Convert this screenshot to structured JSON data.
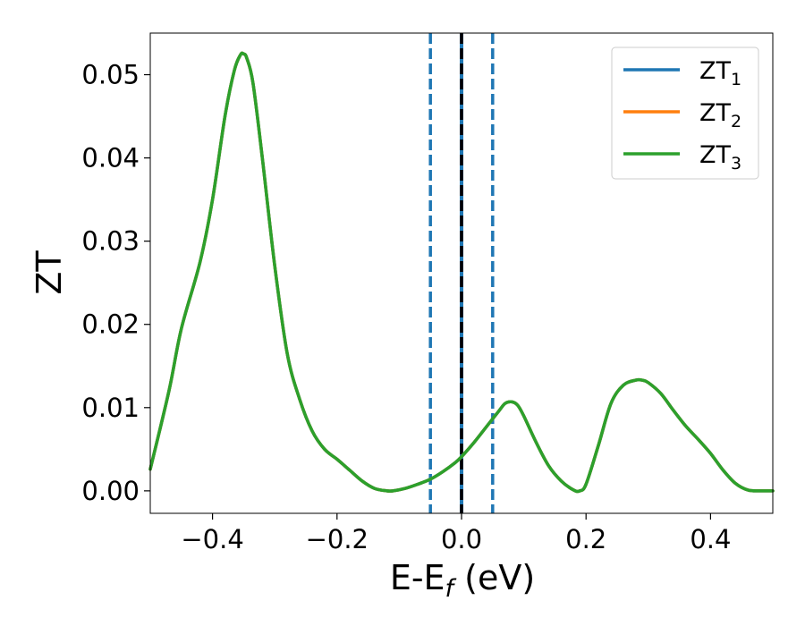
{
  "chart_data": {
    "type": "line",
    "xlabel": "E-E",
    "xlabel_sub": "f",
    "xlabel_unit": " (eV)",
    "ylabel": "ZT",
    "xlim": [
      -0.5,
      0.5
    ],
    "ylim": [
      -0.0027,
      0.055
    ],
    "xticks": [
      -0.4,
      -0.2,
      0.0,
      0.2,
      0.4
    ],
    "xtick_labels": [
      "−0.4",
      "−0.2",
      "0.0",
      "0.2",
      "0.4"
    ],
    "yticks": [
      0.0,
      0.01,
      0.02,
      0.03,
      0.04,
      0.05
    ],
    "ytick_labels": [
      "0.00",
      "0.01",
      "0.02",
      "0.03",
      "0.04",
      "0.05"
    ],
    "grid": false,
    "legend_position": "top-right",
    "x": [
      -0.5,
      -0.47,
      -0.45,
      -0.42,
      -0.4,
      -0.38,
      -0.365,
      -0.355,
      -0.35,
      -0.345,
      -0.335,
      -0.32,
      -0.3,
      -0.28,
      -0.26,
      -0.24,
      -0.22,
      -0.2,
      -0.18,
      -0.16,
      -0.14,
      -0.12,
      -0.11,
      -0.09,
      -0.07,
      -0.05,
      -0.03,
      -0.01,
      0.0,
      0.02,
      0.04,
      0.06,
      0.07,
      0.08,
      0.09,
      0.1,
      0.12,
      0.14,
      0.16,
      0.18,
      0.19,
      0.2,
      0.22,
      0.24,
      0.26,
      0.28,
      0.29,
      0.3,
      0.32,
      0.34,
      0.36,
      0.38,
      0.4,
      0.42,
      0.44,
      0.46,
      0.48,
      0.5
    ],
    "series": [
      {
        "name": "ZT",
        "sub": "1",
        "color": "#1f77b4",
        "values": [
          0.0026,
          0.012,
          0.0195,
          0.0275,
          0.035,
          0.045,
          0.0505,
          0.0524,
          0.0525,
          0.052,
          0.049,
          0.04,
          0.027,
          0.0165,
          0.011,
          0.0072,
          0.005,
          0.0038,
          0.0025,
          0.0012,
          0.0003,
          0.0,
          0.0,
          0.0003,
          0.0008,
          0.0014,
          0.0023,
          0.0034,
          0.0041,
          0.0058,
          0.0077,
          0.0096,
          0.0105,
          0.0107,
          0.0103,
          0.009,
          0.0058,
          0.003,
          0.0012,
          0.0001,
          0.0,
          0.0008,
          0.0055,
          0.0105,
          0.0127,
          0.0133,
          0.0133,
          0.013,
          0.0117,
          0.0097,
          0.0078,
          0.0062,
          0.0045,
          0.0025,
          0.0009,
          0.0001,
          0.0,
          0.0
        ]
      },
      {
        "name": "ZT",
        "sub": "2",
        "color": "#ff7f0e",
        "values": [
          0.0026,
          0.012,
          0.0195,
          0.0275,
          0.035,
          0.045,
          0.0505,
          0.0524,
          0.0525,
          0.052,
          0.049,
          0.04,
          0.027,
          0.0165,
          0.011,
          0.0072,
          0.005,
          0.0038,
          0.0025,
          0.0012,
          0.0003,
          0.0,
          0.0,
          0.0003,
          0.0008,
          0.0014,
          0.0023,
          0.0034,
          0.0041,
          0.0058,
          0.0077,
          0.0096,
          0.0105,
          0.0107,
          0.0103,
          0.009,
          0.0058,
          0.003,
          0.0012,
          0.0001,
          0.0,
          0.0008,
          0.0055,
          0.0105,
          0.0127,
          0.0133,
          0.0133,
          0.013,
          0.0117,
          0.0097,
          0.0078,
          0.0062,
          0.0045,
          0.0025,
          0.0009,
          0.0001,
          0.0,
          0.0
        ]
      },
      {
        "name": "ZT",
        "sub": "3",
        "color": "#2ca02c",
        "values": [
          0.0026,
          0.012,
          0.0195,
          0.0275,
          0.035,
          0.045,
          0.0505,
          0.0524,
          0.0525,
          0.052,
          0.049,
          0.04,
          0.027,
          0.0165,
          0.011,
          0.0072,
          0.005,
          0.0038,
          0.0025,
          0.0012,
          0.0003,
          0.0,
          0.0,
          0.0003,
          0.0008,
          0.0014,
          0.0023,
          0.0034,
          0.0041,
          0.0058,
          0.0077,
          0.0096,
          0.0105,
          0.0107,
          0.0103,
          0.009,
          0.0058,
          0.003,
          0.0012,
          0.0001,
          0.0,
          0.0008,
          0.0055,
          0.0105,
          0.0127,
          0.0133,
          0.0133,
          0.013,
          0.0117,
          0.0097,
          0.0078,
          0.0062,
          0.0045,
          0.0025,
          0.0009,
          0.0001,
          0.0,
          0.0
        ]
      }
    ],
    "reference_lines": [
      {
        "x": -0.05,
        "style": "dashed",
        "color": "#1f77b4"
      },
      {
        "x": 0.0,
        "style": "solid",
        "color": "#1f77b4"
      },
      {
        "x": 0.0,
        "style": "dashed",
        "color": "#000000"
      },
      {
        "x": 0.05,
        "style": "dashed",
        "color": "#1f77b4"
      }
    ]
  }
}
